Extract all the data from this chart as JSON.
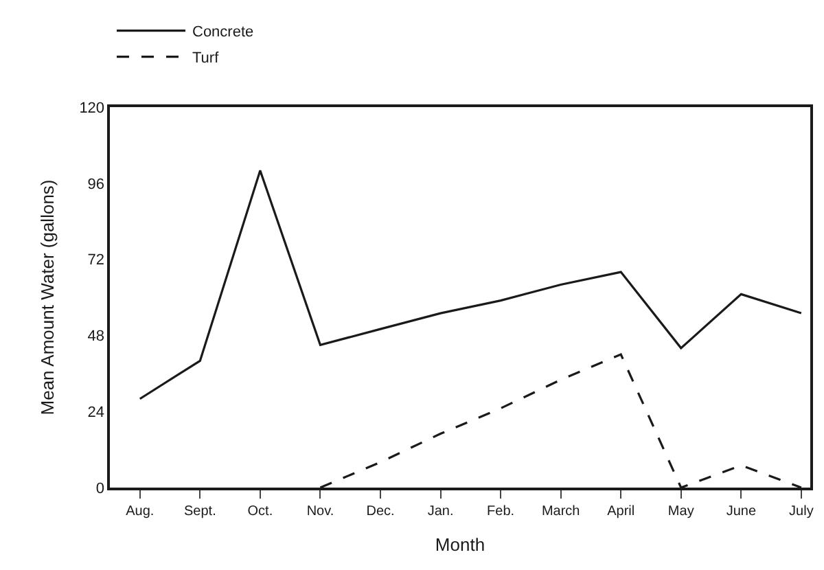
{
  "chart_data": {
    "type": "line",
    "xlabel": "Month",
    "ylabel": "Mean Amount Water (gallons)",
    "categories": [
      "Aug.",
      "Sept.",
      "Oct.",
      "Nov.",
      "Dec.",
      "Jan.",
      "Feb.",
      "March",
      "April",
      "May",
      "June",
      "July"
    ],
    "series": [
      {
        "name": "Concrete",
        "color": "#1a1a1a",
        "line_style": "solid",
        "values": [
          28,
          40,
          100,
          45,
          50,
          55,
          59,
          64,
          68,
          44,
          61,
          55
        ]
      },
      {
        "name": "Turf",
        "color": "#1a1a1a",
        "line_style": "dashed",
        "values": [
          null,
          null,
          null,
          0,
          8,
          17,
          25,
          34,
          42,
          0,
          7,
          0
        ]
      }
    ],
    "ylim": [
      0,
      120
    ],
    "yticks": [
      0,
      24,
      48,
      72,
      96,
      120
    ],
    "legend": "top",
    "marker": "none"
  }
}
